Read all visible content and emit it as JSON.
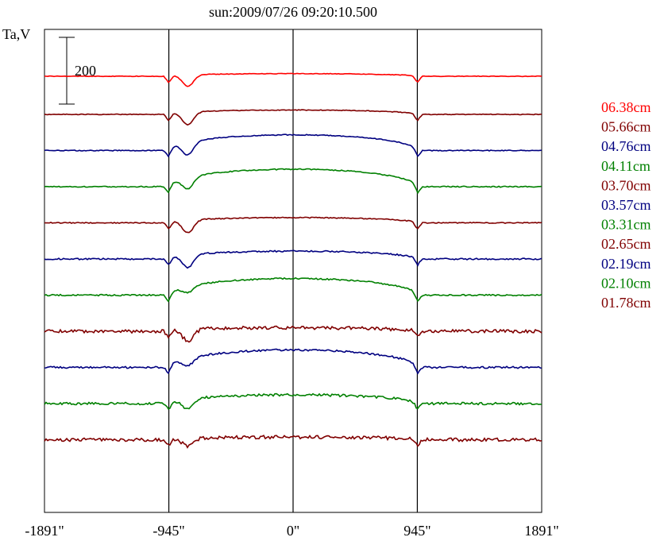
{
  "chart_data": {
    "type": "line",
    "title": "sun:2009/07/26 09:20:10.500",
    "ylabel": "Ta,V",
    "scale_bar_label": "200",
    "x_ticks": [
      {
        "value": -1891,
        "label": "-1891\""
      },
      {
        "value": -945,
        "label": "-945\""
      },
      {
        "value": 0,
        "label": "0\""
      },
      {
        "value": 945,
        "label": "945\""
      },
      {
        "value": 1891,
        "label": "1891\""
      }
    ],
    "xlim": [
      -1891,
      1891
    ],
    "vertical_lines": [
      -945,
      0,
      945
    ],
    "grid": false,
    "legend_position": "right",
    "series": [
      {
        "name": "06.38cm",
        "color": "#ff0000",
        "profile": 0.15,
        "dip": 0.9,
        "noise": 0.12
      },
      {
        "name": "05.66cm",
        "color": "#800000",
        "profile": 0.25,
        "dip": 1.0,
        "noise": 0.15
      },
      {
        "name": "04.76cm",
        "color": "#000080",
        "profile": 0.9,
        "dip": 1.0,
        "noise": 0.18
      },
      {
        "name": "04.11cm",
        "color": "#008000",
        "profile": 1.0,
        "dip": 0.9,
        "noise": 0.22
      },
      {
        "name": "03.70cm",
        "color": "#800000",
        "profile": 0.3,
        "dip": 1.0,
        "noise": 0.2
      },
      {
        "name": "03.57cm",
        "color": "#000080",
        "profile": 0.45,
        "dip": 1.0,
        "noise": 0.3
      },
      {
        "name": "03.31cm",
        "color": "#008000",
        "profile": 0.95,
        "dip": 0.5,
        "noise": 0.3
      },
      {
        "name": "02.65cm",
        "color": "#800000",
        "profile": 0.2,
        "dip": 0.9,
        "noise": 0.7
      },
      {
        "name": "02.19cm",
        "color": "#000080",
        "profile": 1.0,
        "dip": 0.6,
        "noise": 0.4
      },
      {
        "name": "02.10cm",
        "color": "#008000",
        "profile": 0.5,
        "dip": 0.8,
        "noise": 0.5
      },
      {
        "name": "01.78cm",
        "color": "#800000",
        "profile": 0.15,
        "dip": 0.6,
        "noise": 0.7
      }
    ]
  }
}
